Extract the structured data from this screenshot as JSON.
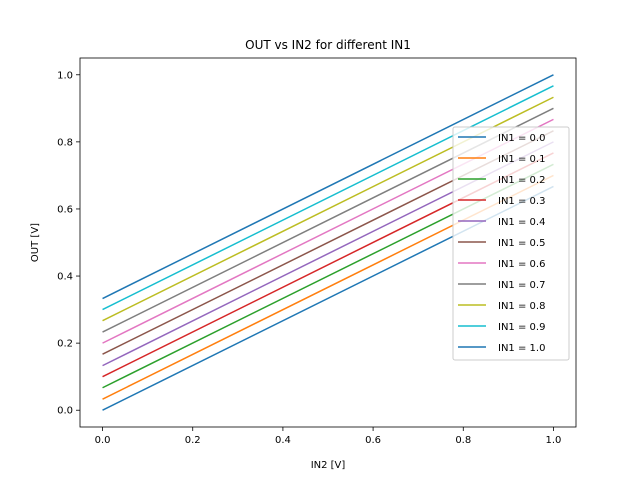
{
  "chart_data": {
    "type": "line",
    "title": "OUT vs IN2 for different IN1",
    "xlabel": "IN2 [V]",
    "ylabel": "OUT [V]",
    "xlim": [
      -0.05,
      1.05
    ],
    "ylim": [
      -0.05,
      1.05
    ],
    "xticks": [
      "0.0",
      "0.2",
      "0.4",
      "0.6",
      "0.8",
      "1.0"
    ],
    "yticks": [
      "0.0",
      "0.2",
      "0.4",
      "0.6",
      "0.8",
      "1.0"
    ],
    "grid": false,
    "legend_position": "right",
    "series": [
      {
        "name": "IN1 = 0.0",
        "color": "#1f77b4",
        "x": [
          0.0,
          1.0
        ],
        "y": [
          0.0,
          0.667
        ]
      },
      {
        "name": "IN1 = 0.1",
        "color": "#ff7f0e",
        "x": [
          0.0,
          1.0
        ],
        "y": [
          0.033,
          0.7
        ]
      },
      {
        "name": "IN1 = 0.2",
        "color": "#2ca02c",
        "x": [
          0.0,
          1.0
        ],
        "y": [
          0.067,
          0.733
        ]
      },
      {
        "name": "IN1 = 0.3",
        "color": "#d62728",
        "x": [
          0.0,
          1.0
        ],
        "y": [
          0.1,
          0.767
        ]
      },
      {
        "name": "IN1 = 0.4",
        "color": "#9467bd",
        "x": [
          0.0,
          1.0
        ],
        "y": [
          0.133,
          0.8
        ]
      },
      {
        "name": "IN1 = 0.5",
        "color": "#8c564b",
        "x": [
          0.0,
          1.0
        ],
        "y": [
          0.167,
          0.833
        ]
      },
      {
        "name": "IN1 = 0.6",
        "color": "#e377c2",
        "x": [
          0.0,
          1.0
        ],
        "y": [
          0.2,
          0.867
        ]
      },
      {
        "name": "IN1 = 0.7",
        "color": "#7f7f7f",
        "x": [
          0.0,
          1.0
        ],
        "y": [
          0.233,
          0.9
        ]
      },
      {
        "name": "IN1 = 0.8",
        "color": "#bcbd22",
        "x": [
          0.0,
          1.0
        ],
        "y": [
          0.267,
          0.933
        ]
      },
      {
        "name": "IN1 = 0.9",
        "color": "#17becf",
        "x": [
          0.0,
          1.0
        ],
        "y": [
          0.3,
          0.967
        ]
      },
      {
        "name": "IN1 = 1.0",
        "color": "#1f77b4",
        "x": [
          0.0,
          1.0
        ],
        "y": [
          0.333,
          1.0
        ]
      }
    ]
  }
}
